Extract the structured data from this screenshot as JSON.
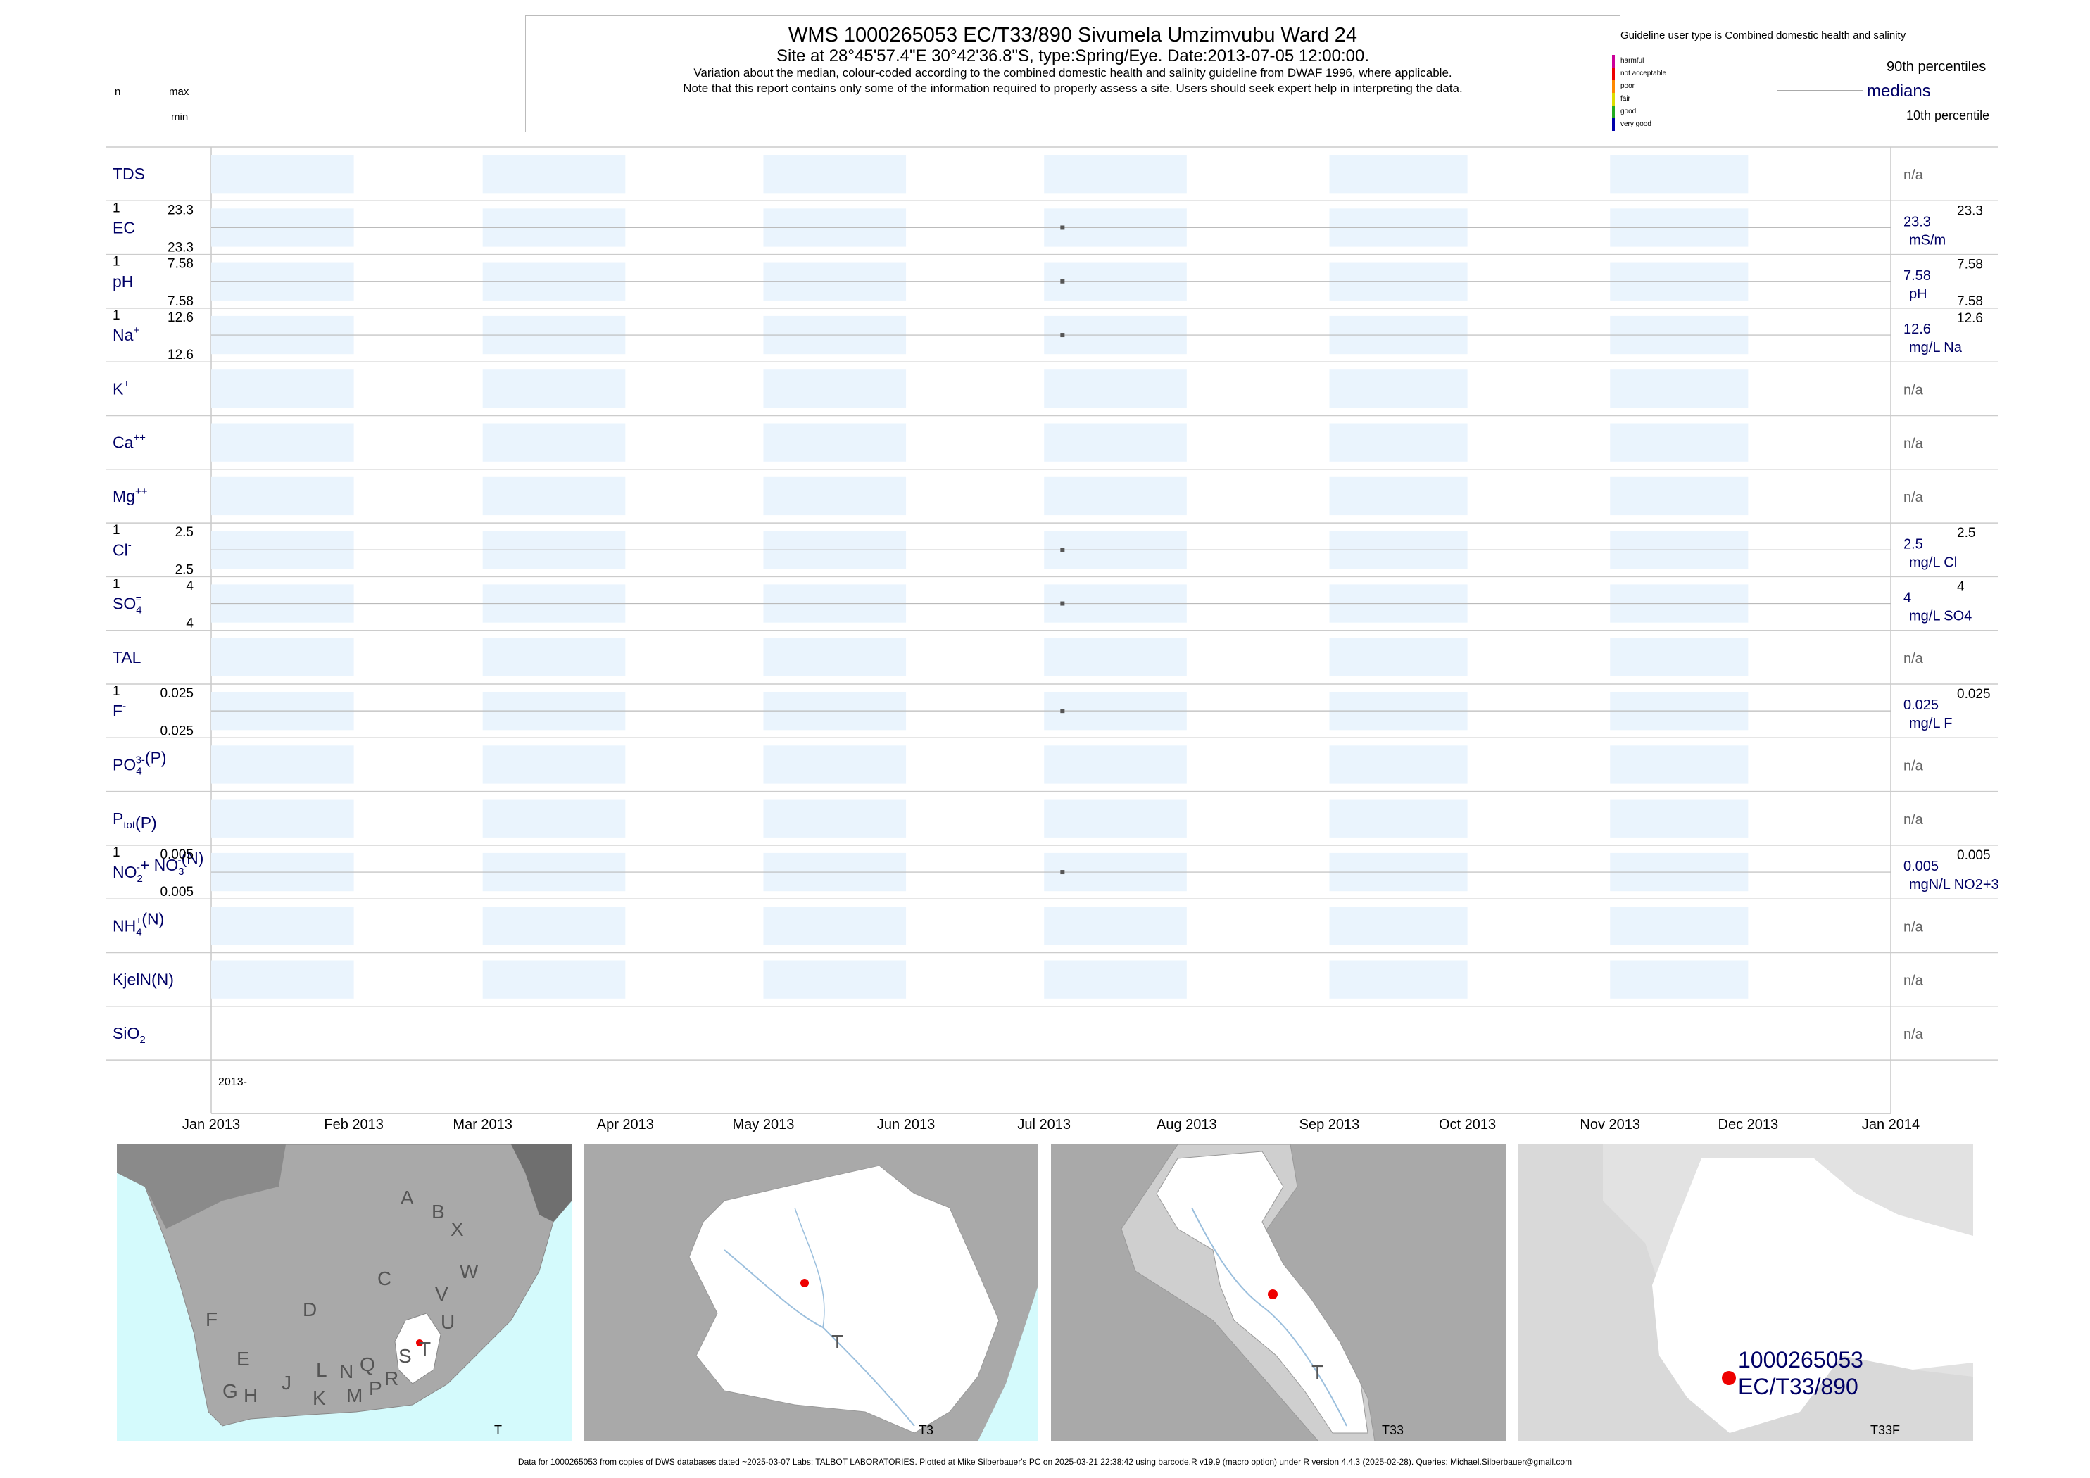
{
  "header": {
    "title": "WMS 1000265053 EC/T33/890 Sivumela Umzimvubu Ward 24",
    "subtitle": "Site at 28°45'57.4\"E 30°42'36.8\"S, type:Spring/Eye. Date:2013-07-05 12:00:00.",
    "note1": "Variation about the median,  colour-coded according to the combined domestic health and salinity guideline from DWAF 1996, where applicable.",
    "note2": "Note that this report contains only some of the information required to properly assess a site. Users should seek expert help in interpreting the data."
  },
  "top_left": {
    "n": "n",
    "max": "max",
    "min": "min"
  },
  "legend": {
    "guideline": "Guideline user type is Combined domestic health and salinity",
    "classes": [
      {
        "label": "harmful",
        "color": "#cc0099"
      },
      {
        "label": "not acceptable",
        "color": "#ee0000"
      },
      {
        "label": "poor",
        "color": "#ff8800"
      },
      {
        "label": "fair",
        "color": "#dddd00"
      },
      {
        "label": "good",
        "color": "#22aa22"
      },
      {
        "label": "very good",
        "color": "#0000aa"
      }
    ],
    "p90": "90th percentiles",
    "medians": "medians",
    "p10": "10th percentile"
  },
  "chart_data": {
    "type": "scatter",
    "x_range": [
      "2013-01-01",
      "2014-01-01"
    ],
    "x_ticks": [
      "Jan 2013",
      "Feb 2013",
      "Mar 2013",
      "Apr 2013",
      "May 2013",
      "Jun 2013",
      "Jul 2013",
      "Aug 2013",
      "Sep 2013",
      "Oct 2013",
      "Nov 2013",
      "Dec 2013",
      "Jan 2014"
    ],
    "year_label": "2013-",
    "sample_date": "2013-07-05",
    "rows": [
      {
        "name": "TDS",
        "sup": "",
        "sub": "",
        "tail": "",
        "has": false,
        "na": "n/a"
      },
      {
        "name": "EC",
        "sup": "",
        "sub": "",
        "tail": "",
        "has": true,
        "n": "1",
        "max": "23.3",
        "min": "23.3",
        "median": "23.3",
        "unit": "mS/m",
        "p90": "23.3",
        "p10": "",
        "value": 23.3
      },
      {
        "name": "pH",
        "sup": "",
        "sub": "",
        "tail": "",
        "has": true,
        "n": "1",
        "max": "7.58",
        "min": "7.58",
        "median": "7.58",
        "unit": "pH",
        "p90": "7.58",
        "p10": "7.58",
        "value": 7.58
      },
      {
        "name": "Na",
        "sup": "+",
        "sub": "",
        "tail": "",
        "has": true,
        "n": "1",
        "max": "12.6",
        "min": "12.6",
        "median": "12.6",
        "unit": "mg/L Na",
        "p90": "12.6",
        "p10": "",
        "value": 12.6
      },
      {
        "name": "K",
        "sup": "+",
        "sub": "",
        "tail": "",
        "has": false,
        "na": "n/a"
      },
      {
        "name": "Ca",
        "sup": "++",
        "sub": "",
        "tail": "",
        "has": false,
        "na": "n/a"
      },
      {
        "name": "Mg",
        "sup": "++",
        "sub": "",
        "tail": "",
        "has": false,
        "na": "n/a"
      },
      {
        "name": "Cl",
        "sup": "-",
        "sub": "",
        "tail": "",
        "has": true,
        "n": "1",
        "max": "2.5",
        "min": "2.5",
        "median": "2.5",
        "unit": "mg/L Cl",
        "p90": "2.5",
        "p10": "",
        "value": 2.5
      },
      {
        "name": "SO",
        "sup": "=",
        "sub": "4",
        "tail": "",
        "has": true,
        "n": "1",
        "max": "4",
        "min": "4",
        "median": "4",
        "unit": "mg/L SO4",
        "p90": "4",
        "p10": "",
        "value": 4
      },
      {
        "name": "TAL",
        "sup": "",
        "sub": "",
        "tail": "",
        "has": false,
        "na": "n/a"
      },
      {
        "name": "F",
        "sup": "-",
        "sub": "",
        "tail": "",
        "has": true,
        "n": "1",
        "max": "0.025",
        "min": "0.025",
        "median": "0.025",
        "unit": "mg/L F",
        "p90": "0.025",
        "p10": "",
        "value": 0.025
      },
      {
        "name": "PO",
        "sup": "3-",
        "sub": "4",
        "tail": "(P)",
        "has": false,
        "na": "n/a"
      },
      {
        "name": "P",
        "sup": "",
        "sub": "tot",
        "tail": "(P)",
        "has": false,
        "na": "n/a"
      },
      {
        "name": "NO",
        "sup": "-",
        "sub": "2",
        "tail": "+ NO",
        "sup2": "-",
        "sub2": "3",
        "tail2": "(N)",
        "has": true,
        "n": "1",
        "max": "0.005",
        "min": "0.005",
        "median": "0.005",
        "unit": "mgN/L NO2+3",
        "p90": "0.005",
        "p10": "",
        "value": 0.005
      },
      {
        "name": "NH",
        "sup": "+",
        "sub": "4",
        "tail": "(N)",
        "has": false,
        "na": "n/a"
      },
      {
        "name": "KjelN(N)",
        "sup": "",
        "sub": "",
        "tail": "",
        "has": false,
        "na": "n/a"
      },
      {
        "name": "SiO",
        "sup": "",
        "sub": "2",
        "tail": "",
        "has": false,
        "na": "n/a"
      }
    ]
  },
  "maps": [
    {
      "caption": "T",
      "letters": [
        "A",
        "B",
        "X",
        "W",
        "C",
        "V",
        "D",
        "U",
        "F",
        "T",
        "E",
        "S",
        "L",
        "N",
        "Q",
        "R",
        "J",
        "G",
        "H",
        "K",
        "M",
        "P"
      ]
    },
    {
      "caption": "T3",
      "letters": [
        "T"
      ]
    },
    {
      "caption": "T33",
      "letters": [
        "T"
      ]
    },
    {
      "caption": "T33F",
      "site_id": "1000265053",
      "site_code": "EC/T33/890"
    }
  ],
  "footer": "Data for 1000265053 from copies of DWS databases dated ~2025-03-07 Labs: TALBOT LABORATORIES. Plotted at Mike Silberbauer's PC on 2025-03-21 22:38:42 using barcode.R v19.9 (macro option) under R version 4.4.3 (2025-02-28). Queries: Michael.Silberbauer@gmail.com",
  "colors": {
    "navy": "#000066",
    "band": "#eaf4fd",
    "marker": "#555555",
    "map_sea": "#d4fafc",
    "map_grey": "#a9a9a9",
    "map_white": "#ffffff"
  }
}
